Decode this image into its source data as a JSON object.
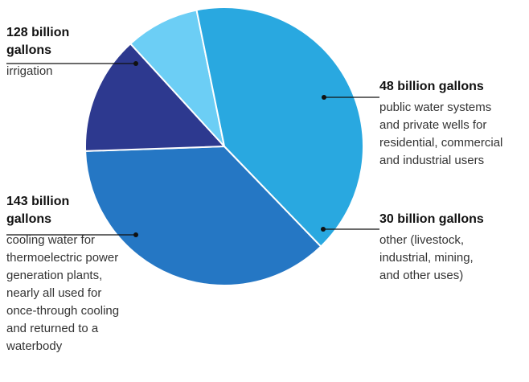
{
  "chart_data": {
    "type": "pie",
    "units": "billion gallons",
    "slices": [
      {
        "value": 128,
        "label": "128 billion\ngallons",
        "description": "irrigation",
        "color": "#2577c4"
      },
      {
        "value": 48,
        "label": "48 billion gallons",
        "description": "public water systems\nand private wells for\nresidential, commercial\nand industrial users",
        "color": "#2d398f"
      },
      {
        "value": 30,
        "label": "30 billion gallons",
        "description": "other (livestock,\nindustrial, mining,\nand other uses)",
        "color": "#6ccef5"
      },
      {
        "value": 143,
        "label": "143 billion\ngallons",
        "description": "cooling water for\nthermoelectric power\ngeneration plants,\nnearly all used for\nonce-through cooling\nand returned to a\nwaterbody",
        "color": "#29a8e0"
      }
    ]
  }
}
